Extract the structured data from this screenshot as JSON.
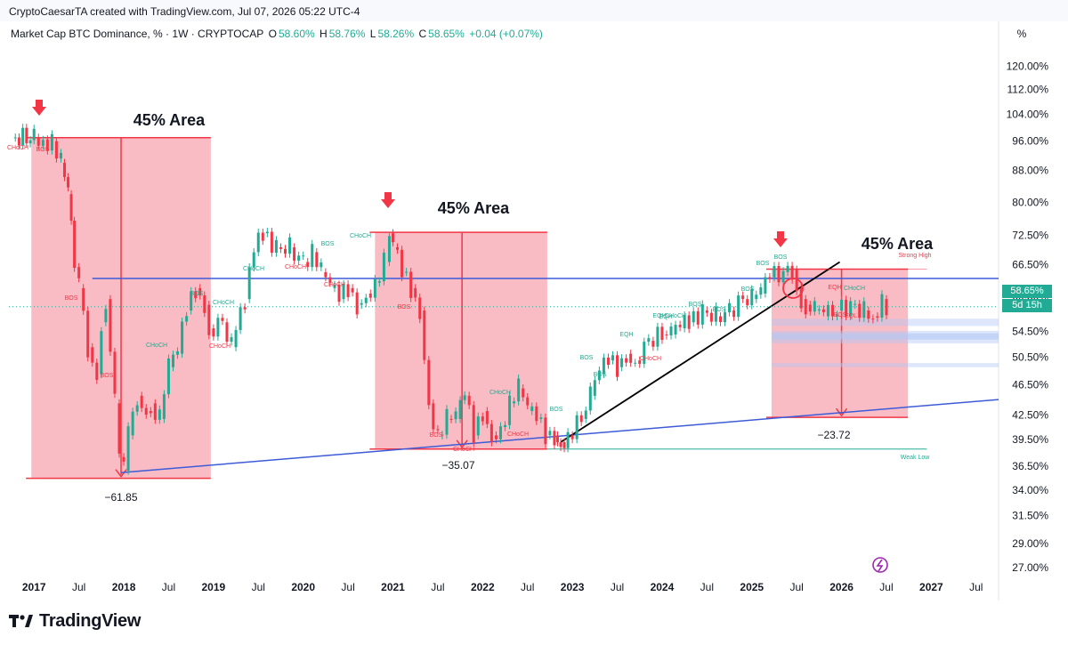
{
  "credit": "CryptoCaesarTA created with TradingView.com, Jul 07, 2026 05:22 UTC-4",
  "symbol_info": {
    "title": "Market Cap BTC Dominance, % · 1W · CRYPTOCAP",
    "open_label": "O",
    "open": "58.60%",
    "high_label": "H",
    "high": "58.76%",
    "low_label": "L",
    "low": "58.26%",
    "close_label": "C",
    "close": "58.65%",
    "change": "+0.04 (+0.07%)"
  },
  "scale_button": "%",
  "price_tag": {
    "value": "58.65%",
    "countdown": "5d 15h"
  },
  "brand": "TradingView",
  "colors": {
    "up": "#22ab94",
    "down": "#f23645",
    "zone_fill": "#f7a6b0",
    "trendline": "#3d5bd9",
    "grid_text": "#131722",
    "fvg": "#b3c8f5"
  },
  "chart_data": {
    "type": "line",
    "title": "Market Cap BTC Dominance, % · 1W · CRYPTOCAP",
    "y_scale": "log",
    "ylim": [
      25.8,
      128
    ],
    "y_ticks": [
      "120.00%",
      "112.00%",
      "104.00%",
      "96.00%",
      "88.00%",
      "80.00%",
      "72.50%",
      "66.50%",
      "60.50%",
      "54.50%",
      "50.50%",
      "46.50%",
      "42.50%",
      "39.50%",
      "36.50%",
      "34.00%",
      "31.50%",
      "29.00%",
      "27.00%"
    ],
    "x_ticks": [
      "2017",
      "Jul",
      "2018",
      "Jul",
      "2019",
      "Jul",
      "2020",
      "Jul",
      "2021",
      "Jul",
      "2022",
      "Jul",
      "2023",
      "Jul",
      "2024",
      "Jul",
      "2025",
      "Jul",
      "2026",
      "Jul",
      "2027",
      "Jul"
    ],
    "x_range": [
      2016.72,
      2027.75
    ],
    "series": [
      {
        "x": [
          2016.75,
          2017.0,
          2017.1,
          2017.2,
          2017.3,
          2017.38,
          2017.45,
          2017.5,
          2017.6,
          2017.7,
          2017.75,
          2017.8,
          2017.9,
          2017.95,
          2018.0,
          2018.05,
          2018.15,
          2018.25,
          2018.3,
          2018.4,
          2018.5,
          2018.6,
          2018.7,
          2018.8,
          2018.9,
          2018.95,
          2019.1,
          2019.2,
          2019.35,
          2019.45,
          2019.55,
          2019.7,
          2019.85,
          2020.0,
          2020.1,
          2020.2,
          2020.3,
          2020.4,
          2020.5,
          2020.6,
          2020.7,
          2020.8,
          2020.9,
          2020.96,
          2021.0,
          2021.1,
          2021.2,
          2021.3,
          2021.4,
          2021.5,
          2021.6,
          2021.7,
          2021.8,
          2021.9,
          2022.0,
          2022.1,
          2022.2,
          2022.3,
          2022.4,
          2022.5,
          2022.6,
          2022.7,
          2022.8,
          2022.87,
          2022.95,
          2023.1,
          2023.2,
          2023.3,
          2023.4,
          2023.5,
          2023.6,
          2023.7,
          2023.85,
          2024.0,
          2024.1,
          2024.2,
          2024.3,
          2024.45,
          2024.6,
          2024.75,
          2024.9,
          2025.0,
          2025.1,
          2025.2,
          2025.35,
          2025.45,
          2025.5,
          2025.55,
          2025.6,
          2025.7,
          2025.8,
          2025.95,
          2026.1,
          2026.25,
          2026.35,
          2026.45,
          2026.5
        ],
        "y": [
          97,
          97,
          96.5,
          96,
          90,
          82,
          66,
          62,
          52,
          48,
          56,
          60,
          44,
          37.5,
          36,
          40,
          45,
          43,
          44,
          42,
          49,
          51,
          58,
          62,
          59,
          55,
          56,
          52,
          60,
          69,
          73,
          70,
          70,
          67,
          69,
          65,
          62,
          60,
          62,
          59,
          61,
          63,
          67,
          73,
          70,
          65,
          62,
          58,
          44,
          40,
          42,
          42,
          45,
          40,
          43,
          40,
          41,
          44,
          46,
          43,
          42,
          40,
          40,
          39.2,
          40,
          42,
          45,
          48,
          50,
          49,
          51,
          50,
          53,
          54,
          54,
          55,
          56,
          58,
          57,
          58,
          60,
          60,
          61,
          64,
          65,
          65.5,
          62,
          60,
          59,
          58,
          57,
          58,
          59,
          58,
          57,
          60,
          58.65
        ]
      }
    ],
    "annotations": {
      "zone_labels": [
        "45% Area",
        "45% Area",
        "45% Area"
      ],
      "drops": [
        "−61.85",
        "−35.07",
        "−23.72"
      ],
      "markers": [
        "CHoCH",
        "BOS",
        "BOS",
        "BOS",
        "CHoCH",
        "CHoCH",
        "BOS",
        "CHoCH",
        "CHoCH",
        "CHoCH",
        "BOS",
        "CHoCH",
        "CHoCH",
        "BOS",
        "BOS",
        "CHoCH",
        "CHoCH",
        "CHoCH",
        "BOS",
        "BOS",
        "EQH",
        "CHoCH",
        "BOS",
        "BOS",
        "EQH",
        "BOS",
        "EQH",
        "CHoCH",
        "BOS",
        "BOS",
        "BOS",
        "EQH",
        "CHoCH",
        "BOS",
        "EQL"
      ],
      "levels": [
        "Strong High",
        "Weak Low"
      ]
    }
  }
}
